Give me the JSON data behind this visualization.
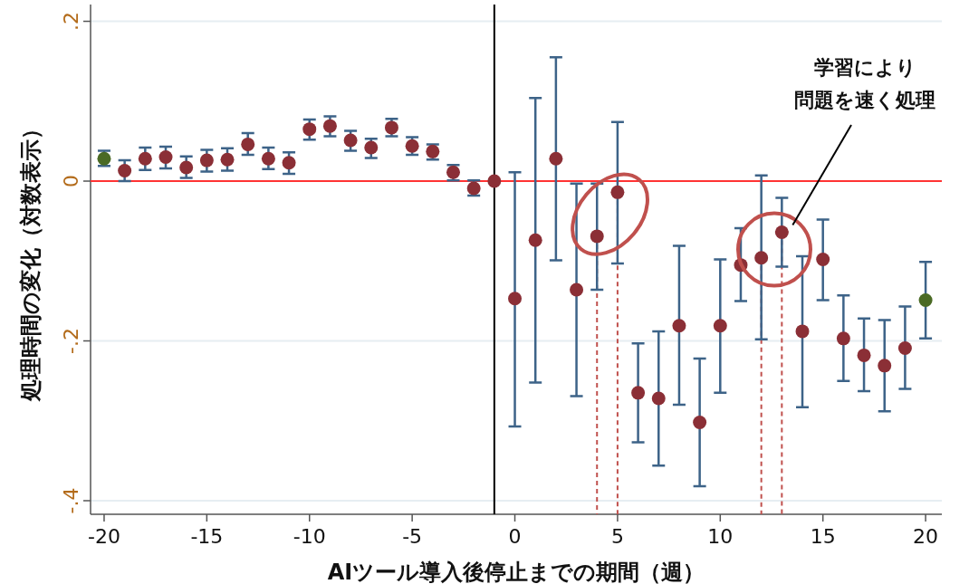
{
  "chart_data": {
    "type": "scatter",
    "xlabel": "AIツール導入後停止までの期間（週）",
    "ylabel": "処理時間の変化（対数表示）",
    "x": [
      -20,
      -19,
      -18,
      -17,
      -16,
      -15,
      -14,
      -13,
      -12,
      -11,
      -10,
      -9,
      -8,
      -7,
      -6,
      -5,
      -4,
      -3,
      -2,
      -1,
      0,
      1,
      2,
      3,
      4,
      5,
      6,
      7,
      8,
      9,
      10,
      11,
      12,
      13,
      14,
      15,
      16,
      17,
      18,
      19,
      20
    ],
    "values": [
      0.028,
      0.013,
      0.028,
      0.03,
      0.017,
      0.026,
      0.027,
      0.046,
      0.028,
      0.023,
      0.065,
      0.069,
      0.051,
      0.042,
      0.067,
      0.044,
      0.037,
      0.011,
      -0.009,
      0,
      -0.147,
      -0.074,
      0.028,
      -0.136,
      -0.069,
      -0.014,
      -0.265,
      -0.272,
      -0.181,
      -0.302,
      -0.181,
      -0.105,
      -0.096,
      -0.064,
      -0.188,
      -0.098,
      -0.197,
      -0.218,
      -0.231,
      -0.209,
      -0.149
    ],
    "errors": [
      [
        0.019,
        0.038
      ],
      [
        0.0,
        0.026
      ],
      [
        0.014,
        0.042
      ],
      [
        0.016,
        0.043
      ],
      [
        0.004,
        0.031
      ],
      [
        0.012,
        0.039
      ],
      [
        0.013,
        0.041
      ],
      [
        0.033,
        0.06
      ],
      [
        0.015,
        0.042
      ],
      [
        0.009,
        0.036
      ],
      [
        0.052,
        0.077
      ],
      [
        0.056,
        0.081
      ],
      [
        0.038,
        0.063
      ],
      [
        0.029,
        0.053
      ],
      [
        0.056,
        0.078
      ],
      [
        0.033,
        0.055
      ],
      [
        0.027,
        0.046
      ],
      [
        0.001,
        0.02
      ],
      [
        -0.018,
        0.001
      ],
      null,
      [
        -0.307,
        0.011
      ],
      [
        -0.252,
        0.104
      ],
      [
        -0.099,
        0.155
      ],
      [
        -0.269,
        -0.003
      ],
      [
        -0.136,
        -0.003
      ],
      [
        -0.103,
        0.074
      ],
      [
        -0.327,
        -0.203
      ],
      [
        -0.356,
        -0.188
      ],
      [
        -0.28,
        -0.081
      ],
      [
        -0.382,
        -0.222
      ],
      [
        -0.265,
        -0.098
      ],
      [
        -0.15,
        -0.059
      ],
      [
        -0.198,
        0.007
      ],
      [
        -0.107,
        -0.021
      ],
      [
        -0.283,
        -0.094
      ],
      [
        -0.149,
        -0.048
      ],
      [
        -0.25,
        -0.143
      ],
      [
        -0.263,
        -0.172
      ],
      [
        -0.288,
        -0.174
      ],
      [
        -0.26,
        -0.157
      ],
      [
        -0.197,
        -0.101
      ]
    ],
    "colors": [
      "#4a6a24",
      "#8b2f36",
      "#8b2f36",
      "#8b2f36",
      "#8b2f36",
      "#8b2f36",
      "#8b2f36",
      "#8b2f36",
      "#8b2f36",
      "#8b2f36",
      "#8b2f36",
      "#8b2f36",
      "#8b2f36",
      "#8b2f36",
      "#8b2f36",
      "#8b2f36",
      "#8b2f36",
      "#8b2f36",
      "#8b2f36",
      "#8b2f36",
      "#8b2f36",
      "#8b2f36",
      "#8b2f36",
      "#8b2f36",
      "#8b2f36",
      "#8b2f36",
      "#8b2f36",
      "#8b2f36",
      "#8b2f36",
      "#8b2f36",
      "#8b2f36",
      "#8b2f36",
      "#8b2f36",
      "#8b2f36",
      "#8b2f36",
      "#8b2f36",
      "#8b2f36",
      "#8b2f36",
      "#8b2f36",
      "#8b2f36",
      "#4a6a24"
    ],
    "marker": "circle",
    "xlim": [
      -20.66,
      20.79
    ],
    "ylim": [
      -0.417,
      0.221
    ],
    "xticks": [
      -20,
      -15,
      -10,
      -5,
      0,
      5,
      10,
      15,
      20
    ],
    "yticks": [
      {
        "value": 0.2,
        "label": ".2"
      },
      {
        "value": 0,
        "label": "0"
      },
      {
        "value": -0.2,
        "label": "-.2"
      },
      {
        "value": -0.4,
        "label": "-.4"
      }
    ],
    "grid": "y",
    "ref_lines": [
      {
        "axis": "y",
        "value": 0,
        "color": "#ff3333",
        "line_style": "solid"
      },
      {
        "axis": "x",
        "value": -1,
        "color": "#000000",
        "line_style": "solid"
      },
      {
        "axis": "x",
        "value": 4,
        "color": "#c0504d",
        "line_style": "dashed"
      },
      {
        "axis": "x",
        "value": 5,
        "color": "#c0504d",
        "line_style": "dashed"
      },
      {
        "axis": "x",
        "value": 12,
        "color": "#c0504d",
        "line_style": "dashed"
      },
      {
        "axis": "x",
        "value": 13,
        "color": "#c0504d",
        "line_style": "dashed"
      }
    ],
    "annotations": [
      "学習により",
      "問題を速く処理"
    ]
  }
}
